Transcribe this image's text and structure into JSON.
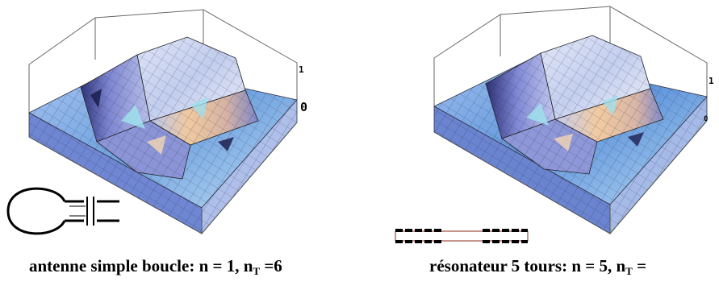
{
  "left_panel": {
    "caption_main": "antenne simple boucle: n = 1, n",
    "caption_sub": "T",
    "caption_tail": " =6",
    "axis_label_top": "1",
    "axis_label_zero": "0"
  },
  "right_panel": {
    "caption_main": "résonateur 5 tours: n = 5, n",
    "caption_sub": "T",
    "caption_tail": " =",
    "axis_label_top": "1",
    "axis_label_zero": "0"
  },
  "colors": {
    "surface_light": "#c9d3ee",
    "surface_blue": "#7f92d8",
    "surface_dark": "#3a3f8a",
    "surface_peach": "#f0c7a0",
    "surface_cyan": "#9fe0ec",
    "coil_wire": "#8b2a1a"
  }
}
